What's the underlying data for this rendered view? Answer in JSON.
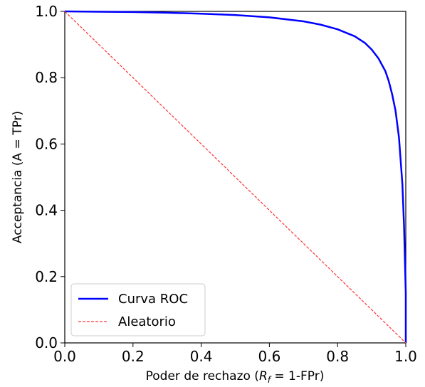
{
  "chart_data": {
    "type": "line",
    "title": "",
    "xlabel_parts": [
      "Poder de rechazo (",
      "R",
      "f",
      " = 1-FPr)"
    ],
    "ylabel": "Acceptancia (A = TPr)",
    "xlim": [
      0.0,
      1.0
    ],
    "ylim": [
      0.0,
      1.0
    ],
    "x_ticks": [
      "0.0",
      "0.2",
      "0.4",
      "0.6",
      "0.8",
      "1.0"
    ],
    "y_ticks": [
      "0.0",
      "0.2",
      "0.4",
      "0.6",
      "0.8",
      "1.0"
    ],
    "grid": false,
    "legend_position": "lower-left",
    "series": [
      {
        "name": "Curva ROC",
        "color": "#0000ff",
        "style": "solid",
        "x": [
          0.0,
          0.1,
          0.2,
          0.3,
          0.4,
          0.5,
          0.6,
          0.7,
          0.75,
          0.8,
          0.85,
          0.88,
          0.9,
          0.92,
          0.94,
          0.95,
          0.96,
          0.97,
          0.98,
          0.99,
          0.995,
          1.0,
          1.0
        ],
        "y": [
          1.0,
          0.999,
          0.998,
          0.996,
          0.993,
          0.989,
          0.982,
          0.97,
          0.96,
          0.946,
          0.925,
          0.905,
          0.885,
          0.858,
          0.82,
          0.79,
          0.75,
          0.7,
          0.62,
          0.48,
          0.35,
          0.15,
          0.0
        ]
      },
      {
        "name": "Aleatorio",
        "color": "#ff3333",
        "style": "dashed",
        "x": [
          0.0,
          1.0
        ],
        "y": [
          1.0,
          0.0
        ]
      }
    ]
  }
}
